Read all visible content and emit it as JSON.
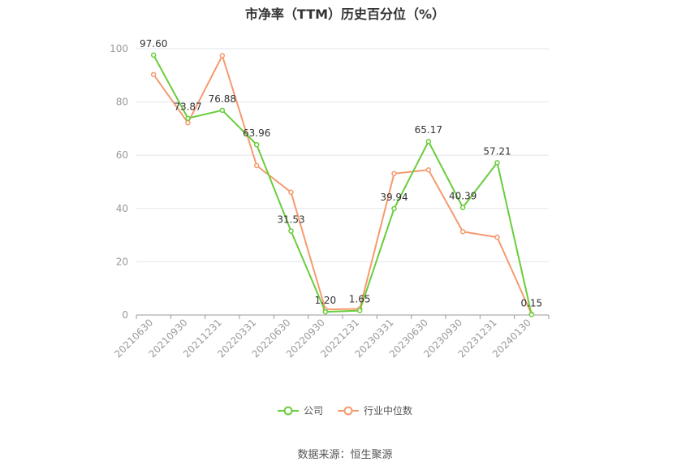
{
  "chart_data": {
    "type": "line",
    "title": "市净率（TTM）历史百分位（%）",
    "categories": [
      "20210630",
      "20210930",
      "20211231",
      "20220331",
      "20220630",
      "20220930",
      "20221231",
      "20230331",
      "20230630",
      "20230930",
      "20231231",
      "20240130"
    ],
    "ylim": [
      0,
      100
    ],
    "yticks": [
      0,
      20,
      40,
      60,
      80,
      100
    ],
    "grid": true,
    "legend_position": "bottom",
    "series": [
      {
        "name": "公司",
        "color": "#6acd3c",
        "values": [
          97.6,
          73.87,
          76.88,
          63.96,
          31.53,
          1.2,
          1.65,
          39.94,
          65.17,
          40.39,
          57.21,
          0.15
        ],
        "labels": [
          "97.60",
          "73.87",
          "76.88",
          "63.96",
          "31.53",
          "1.20",
          "1.65",
          "39.94",
          "65.17",
          "40.39",
          "57.21",
          "0.15"
        ]
      },
      {
        "name": "行业中位数",
        "color": "#f59a6f",
        "values": [
          90.3,
          72.2,
          97.4,
          56.1,
          46.1,
          2.1,
          2.3,
          53.1,
          54.5,
          31.3,
          29.2,
          0.3
        ]
      }
    ]
  },
  "source": "数据来源：恒生聚源"
}
